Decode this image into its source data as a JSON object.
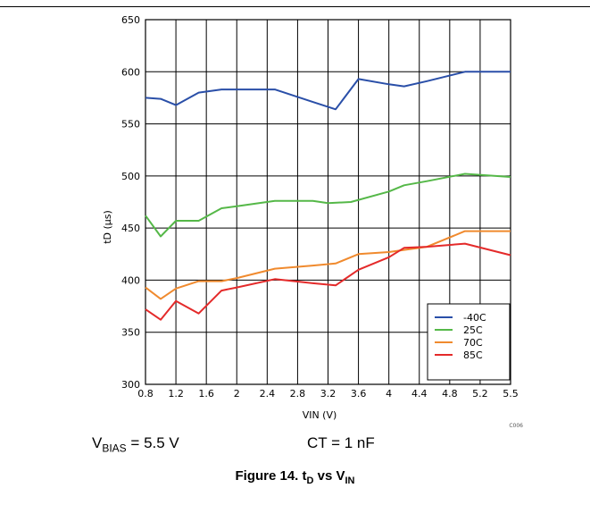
{
  "chart_data": {
    "type": "line",
    "ylabel": "tD (µs)",
    "xlabel": "VIN (V)",
    "ylim": [
      300,
      650
    ],
    "yticks": [
      "300",
      "350",
      "400",
      "450",
      "500",
      "550",
      "600",
      "650"
    ],
    "xticks": [
      {
        "label": "0.8",
        "v": 0.8
      },
      {
        "label": "1.2",
        "v": 1.2
      },
      {
        "label": "1.6",
        "v": 1.6
      },
      {
        "label": "2",
        "v": 2.0
      },
      {
        "label": "2.4",
        "v": 2.4
      },
      {
        "label": "2.8",
        "v": 2.8
      },
      {
        "label": "3.2",
        "v": 3.2
      },
      {
        "label": "3.6",
        "v": 3.6
      },
      {
        "label": "4",
        "v": 4.0
      },
      {
        "label": "4.4",
        "v": 4.4
      },
      {
        "label": "4.8",
        "v": 4.8
      },
      {
        "label": "5.2",
        "v": 5.2
      },
      {
        "label": "5.5",
        "v": 5.5
      }
    ],
    "grid": true,
    "legend_position": "bottom-right",
    "corner_code": "C006",
    "series": [
      {
        "name": "-40C",
        "color": "#2a4fa8",
        "points": [
          [
            0.8,
            575
          ],
          [
            1.0,
            574
          ],
          [
            1.2,
            568
          ],
          [
            1.5,
            580
          ],
          [
            1.8,
            583
          ],
          [
            2.0,
            583
          ],
          [
            2.5,
            583
          ],
          [
            3.0,
            571
          ],
          [
            3.3,
            564
          ],
          [
            3.6,
            593
          ],
          [
            4.0,
            588
          ],
          [
            4.2,
            586
          ],
          [
            4.5,
            591
          ],
          [
            5.0,
            600
          ],
          [
            5.5,
            600
          ]
        ]
      },
      {
        "name": "25C",
        "color": "#55b848",
        "points": [
          [
            0.8,
            462
          ],
          [
            1.0,
            442
          ],
          [
            1.2,
            457
          ],
          [
            1.5,
            457
          ],
          [
            1.8,
            469
          ],
          [
            2.0,
            471
          ],
          [
            2.5,
            476
          ],
          [
            3.0,
            476
          ],
          [
            3.2,
            474
          ],
          [
            3.5,
            475
          ],
          [
            4.0,
            485
          ],
          [
            4.2,
            491
          ],
          [
            4.5,
            495
          ],
          [
            5.0,
            502
          ],
          [
            5.5,
            499
          ]
        ]
      },
      {
        "name": "70C",
        "color": "#f08a2e",
        "points": [
          [
            0.8,
            393
          ],
          [
            1.0,
            382
          ],
          [
            1.2,
            392
          ],
          [
            1.5,
            399
          ],
          [
            1.8,
            399
          ],
          [
            2.0,
            402
          ],
          [
            2.5,
            411
          ],
          [
            3.0,
            414
          ],
          [
            3.3,
            416
          ],
          [
            3.6,
            425
          ],
          [
            4.0,
            427
          ],
          [
            4.2,
            429
          ],
          [
            4.5,
            432
          ],
          [
            5.0,
            447
          ],
          [
            5.5,
            447
          ]
        ]
      },
      {
        "name": "85C",
        "color": "#e42a2a",
        "points": [
          [
            0.8,
            372
          ],
          [
            1.0,
            362
          ],
          [
            1.2,
            380
          ],
          [
            1.5,
            368
          ],
          [
            1.8,
            390
          ],
          [
            2.0,
            393
          ],
          [
            2.5,
            401
          ],
          [
            3.0,
            397
          ],
          [
            3.3,
            395
          ],
          [
            3.6,
            410
          ],
          [
            4.0,
            422
          ],
          [
            4.2,
            431
          ],
          [
            4.5,
            432
          ],
          [
            5.0,
            435
          ],
          [
            5.5,
            424
          ]
        ]
      }
    ]
  },
  "conditions": {
    "vbias_main": "V",
    "vbias_sub": "BIAS",
    "vbias_value": " = 5.5 V",
    "ct": "CT = 1 nF"
  },
  "caption": {
    "prefix": "Figure 14. t",
    "sub1": "D",
    "mid": " vs V",
    "sub2": "IN"
  }
}
